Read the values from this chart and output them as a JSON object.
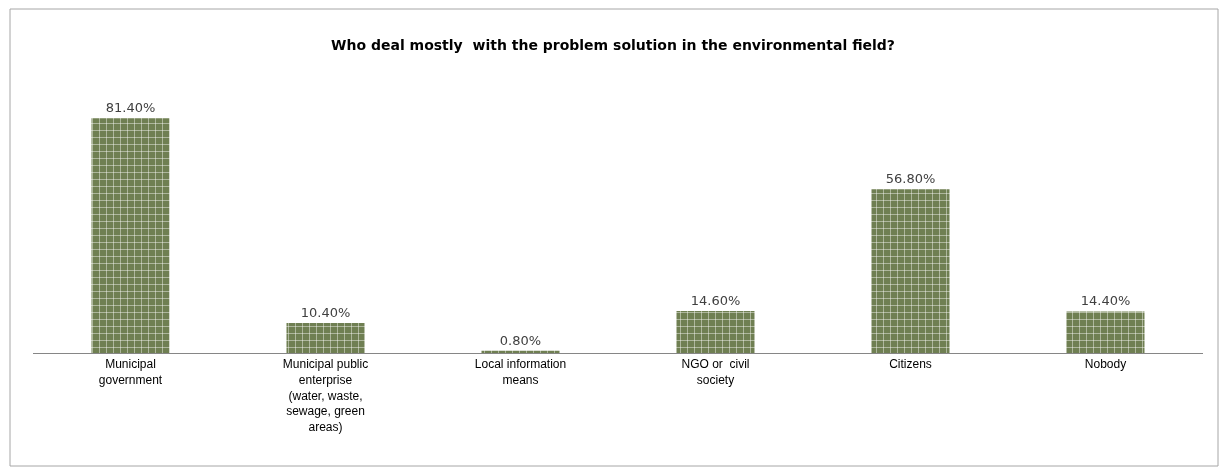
{
  "chart_data": {
    "type": "bar",
    "title": "Who deal mostly  with the problem solution in the environmental field?",
    "categories": [
      "Municipal government",
      "Municipal public enterprise (water, waste, sewage, green areas)",
      "Local information means",
      "NGO or  civil society",
      "Citizens",
      "Nobody"
    ],
    "values": [
      81.4,
      10.4,
      0.8,
      14.6,
      56.8,
      14.4
    ],
    "value_labels": [
      "81.40%",
      "10.40%",
      "0.80%",
      "14.60%",
      "56.80%",
      "14.40%"
    ],
    "color": "#6f7f52",
    "tick_labels": "x"
  }
}
